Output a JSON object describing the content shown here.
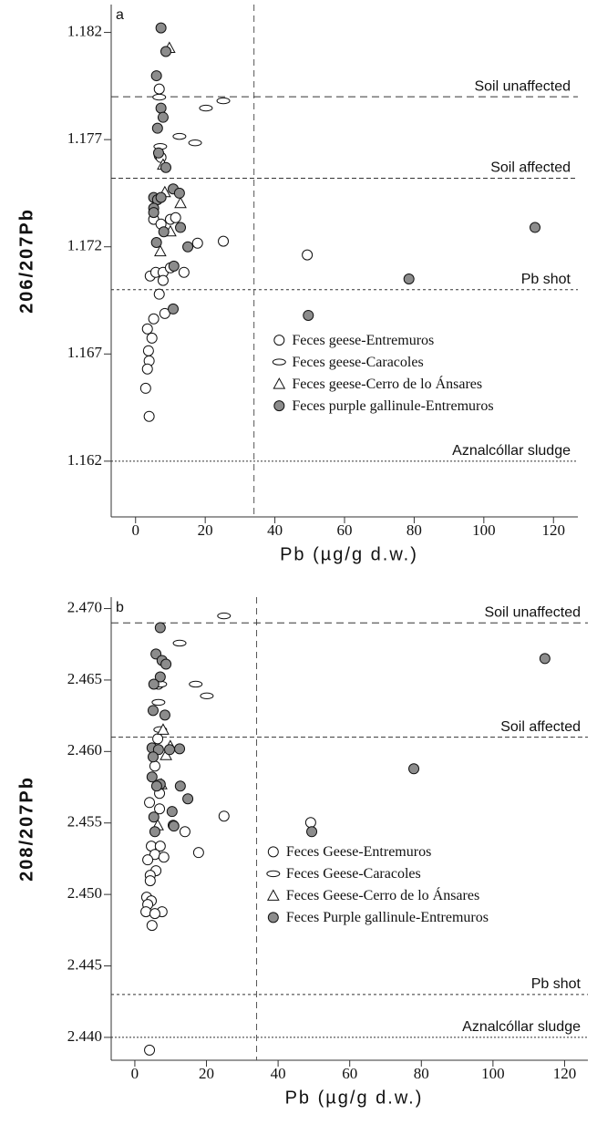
{
  "chart_data": [
    {
      "type": "scatter",
      "panel_label": "a",
      "xlabel": "Pb (µg/g d.w.)",
      "ylabel": "206/207Pb",
      "xlim": [
        -7,
        127
      ],
      "xticks": [
        0,
        20,
        40,
        60,
        80,
        100,
        120
      ],
      "ylim": [
        1.1594,
        1.1833
      ],
      "yticks": [
        1.162,
        1.167,
        1.172,
        1.177,
        1.182
      ],
      "vlines": [
        34
      ],
      "reference_lines": [
        {
          "label": "Soil unaffected",
          "y": 1.179,
          "dash": "8 5"
        },
        {
          "label": "Soil affected",
          "y": 1.1752,
          "dash": "5 3"
        },
        {
          "label": "Pb shot",
          "y": 1.17,
          "dash": "3 3"
        },
        {
          "label": "Aznalcóllar sludge",
          "y": 1.162,
          "dash": "2 2"
        }
      ],
      "series": [
        {
          "name": "Feces geese-Entremuros",
          "marker": "circle",
          "color": "#ffffff",
          "x": [
            6.8,
            6.8,
            7.3,
            5.2,
            7.3,
            10.0,
            11.5,
            17.8,
            25.2,
            49.3,
            4.2,
            5.8,
            7.9,
            10.0,
            13.9,
            6.8,
            7.9,
            5.2,
            8.4,
            3.4,
            4.7,
            3.7,
            3.9,
            3.4,
            2.9,
            3.9
          ],
          "y": [
            1.17936,
            1.17626,
            1.17617,
            1.17328,
            1.17306,
            1.17328,
            1.17336,
            1.17217,
            1.17226,
            1.17162,
            1.17064,
            1.17081,
            1.17081,
            1.17102,
            1.17081,
            1.16979,
            1.17043,
            1.16864,
            1.16889,
            1.16817,
            1.16774,
            1.16715,
            1.16668,
            1.1663,
            1.1654,
            1.16409
          ]
        },
        {
          "name": "Feces geese-Caracoles",
          "marker": "ellipse",
          "color": "#ffffff",
          "x": [
            25.2,
            20.2,
            12.6,
            17.1,
            7.1,
            6.8
          ],
          "y": [
            1.17881,
            1.17847,
            1.17715,
            1.17685,
            1.17668,
            1.17898
          ]
        },
        {
          "name": "Feces geese-Cerro de lo Ánsares",
          "marker": "triangle",
          "color": "#ffffff",
          "x": [
            9.7,
            7.9,
            8.4,
            12.9,
            10.0,
            7.1
          ],
          "y": [
            1.18128,
            1.17583,
            1.17455,
            1.17404,
            1.17272,
            1.17179
          ]
        },
        {
          "name": "Feces purple gallinule-Entremuros",
          "marker": "circle",
          "color": "#8c8c8c",
          "x": [
            7.3,
            8.7,
            6.0,
            7.3,
            7.9,
            6.3,
            6.6,
            8.7,
            5.2,
            6.3,
            5.2,
            7.3,
            10.8,
            12.6,
            5.2,
            8.1,
            12.9,
            6.0,
            15.0,
            11.0,
            10.8,
            114.7,
            78.5,
            49.6
          ],
          "y": [
            1.18221,
            1.18111,
            1.17998,
            1.17847,
            1.17804,
            1.17753,
            1.17638,
            1.1757,
            1.1743,
            1.1742,
            1.1738,
            1.1743,
            1.1747,
            1.1745,
            1.1736,
            1.1727,
            1.1729,
            1.1722,
            1.172,
            1.1711,
            1.1691,
            1.1729,
            1.1705,
            1.1688
          ]
        }
      ]
    },
    {
      "type": "scatter",
      "panel_label": "b",
      "xlabel": "Pb (µg/g d.w.)",
      "ylabel": "208/207Pb",
      "xlim": [
        -6.6,
        126.5
      ],
      "xticks": [
        0,
        20,
        40,
        60,
        80,
        100,
        120
      ],
      "ylim": [
        2.4384,
        2.4708
      ],
      "yticks": [
        {
          "value": 2.44,
          "label": "2.440"
        },
        2.445,
        {
          "value": 2.45,
          "label": "2.450"
        },
        2.455,
        {
          "value": 2.46,
          "label": "2.460"
        },
        2.465,
        {
          "value": 2.47,
          "label": "2.470"
        }
      ],
      "vlines": [
        34
      ],
      "reference_lines": [
        {
          "label": "Soil unaffected",
          "y": 2.469,
          "dash": "8 5"
        },
        {
          "label": "Soil affected",
          "y": 2.461,
          "dash": "5 3"
        },
        {
          "label": "Pb shot",
          "y": 2.443,
          "dash": "3 3"
        },
        {
          "label": "Aznalcóllar sludge",
          "y": 2.44,
          "dash": "2 2"
        }
      ],
      "series": [
        {
          "name": "Feces Geese-Entremuros",
          "marker": "circle",
          "color": "#ffffff",
          "x": [
            6.6,
            6.4,
            5.6,
            6.9,
            4.1,
            6.9,
            24.9,
            49.1,
            14.0,
            10.7,
            17.8,
            4.6,
            7.1,
            5.6,
            8.1,
            3.6,
            5.9,
            4.3,
            4.3,
            3.3,
            4.6,
            3.6,
            3.1,
            7.6,
            5.6,
            4.8,
            4.1
          ],
          "y": [
            2.46471,
            2.46089,
            2.45898,
            2.45707,
            2.45643,
            2.45599,
            2.45548,
            2.45503,
            2.45439,
            2.45484,
            2.45293,
            2.45338,
            2.45338,
            2.4528,
            2.45261,
            2.45242,
            2.45166,
            2.45134,
            2.45096,
            2.44981,
            2.44955,
            2.4493,
            2.44879,
            2.44879,
            2.44866,
            2.44783,
            2.43911
          ]
        },
        {
          "name": "Feces Geese-Caracoles",
          "marker": "ellipse",
          "color": "#ffffff",
          "x": [
            24.9,
            12.5,
            17.0,
            20.1,
            7.1,
            6.6,
            7.1
          ],
          "y": [
            2.46949,
            2.46758,
            2.46471,
            2.46389,
            2.46471,
            2.46344,
            2.46153
          ]
        },
        {
          "name": "Feces Geese-Cerro de lo Ánsares",
          "marker": "triangle",
          "color": "#ffffff",
          "x": [
            7.9,
            9.9,
            8.7,
            7.4,
            6.4
          ],
          "y": [
            2.46153,
            2.46038,
            2.45975,
            2.45771,
            2.45484
          ]
        },
        {
          "name": "Feces Purple gallinule-Entremuros",
          "marker": "circle",
          "color": "#8c8c8c",
          "x": [
            7.1,
            5.9,
            7.6,
            8.7,
            7.1,
            5.3,
            5.1,
            8.4,
            4.8,
            6.6,
            12.5,
            9.7,
            5.1,
            4.8,
            7.1,
            6.1,
            12.7,
            14.8,
            10.4,
            5.3,
            10.9,
            5.6,
            114.5,
            77.9,
            49.4
          ],
          "y": [
            2.46866,
            2.46682,
            2.46637,
            2.46611,
            2.46522,
            2.46471,
            2.46287,
            2.46255,
            2.46025,
            2.46013,
            2.46019,
            2.46013,
            2.45962,
            2.45822,
            2.45771,
            2.45758,
            2.45758,
            2.45669,
            2.4558,
            2.45541,
            2.45478,
            2.45439,
            2.4665,
            2.45879,
            2.45439
          ]
        }
      ]
    }
  ]
}
